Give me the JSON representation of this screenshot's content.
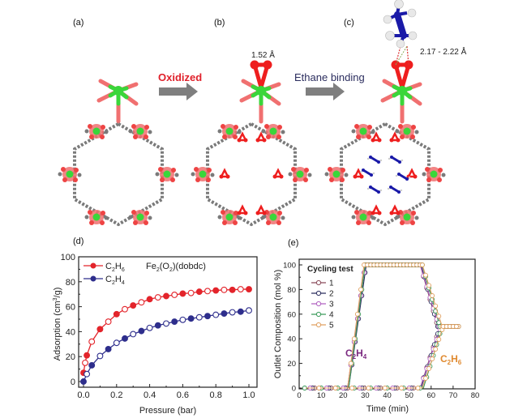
{
  "colors": {
    "oxidized_red": "#e0202a",
    "arrow_gray": "#7f7f7f",
    "ethane_navy": "#2b2d5e",
    "fe_green": "#3ad63a",
    "o_red": "#ee1e1e",
    "bond_pink": "#f07070",
    "c_gray": "#7a7a7a",
    "ethane_blue": "#1a1aa8",
    "c2h6_red": "#e3242b",
    "c2h4_navy": "#2e2e8c"
  },
  "scheme": {
    "panel_a": "(a)",
    "panel_b": "(b)",
    "panel_c": "(c)",
    "arrow1_label": "Oxidized",
    "arrow2_label": "Ethane binding",
    "bond_length_b": "1.52 Å",
    "bond_length_c": "2.17 - 2.22 Å"
  },
  "chart_data": [
    {
      "panel": "(d)",
      "type": "line",
      "title": "Fe2(O2)(dobdc)",
      "title_parts": {
        "base": "Fe",
        "sub1": "2",
        "mid": "(O",
        "sub2": "2",
        "end": ")(dobdc)"
      },
      "xlabel": "Pressure (bar)",
      "ylabel": "Adsorption (cm3/g)",
      "ylabel_parts": {
        "pre": "Adsorption (cm",
        "sup": "3",
        "post": "/g)"
      },
      "xlim": [
        0,
        1.0
      ],
      "ylim": [
        0,
        100
      ],
      "xticks": [
        "0.0",
        "0.2",
        "0.4",
        "0.6",
        "0.8",
        "1.0"
      ],
      "yticks": [
        "0",
        "20",
        "40",
        "60",
        "80",
        "100"
      ],
      "legend_position": "top-left",
      "series": [
        {
          "name": "C2H6",
          "label_parts": {
            "a": "C",
            "s1": "2",
            "b": "H",
            "s2": "6"
          },
          "color": "#e3242b",
          "x": [
            0.0,
            0.01,
            0.02,
            0.05,
            0.1,
            0.15,
            0.2,
            0.25,
            0.3,
            0.35,
            0.4,
            0.45,
            0.5,
            0.55,
            0.6,
            0.65,
            0.7,
            0.75,
            0.8,
            0.85,
            0.9,
            0.95,
            1.0
          ],
          "y": [
            7,
            15,
            21,
            32,
            42,
            48,
            54,
            58,
            61,
            63.5,
            66,
            67.5,
            68.5,
            69.5,
            70.5,
            71,
            72,
            72.5,
            73,
            73.5,
            73.5,
            74,
            74
          ]
        },
        {
          "name": "C2H4",
          "label_parts": {
            "a": "C",
            "s1": "2",
            "b": "H",
            "s2": "4"
          },
          "color": "#2e2e8c",
          "x": [
            0.0,
            0.02,
            0.05,
            0.1,
            0.15,
            0.2,
            0.25,
            0.3,
            0.35,
            0.4,
            0.45,
            0.5,
            0.55,
            0.6,
            0.65,
            0.7,
            0.75,
            0.8,
            0.85,
            0.9,
            0.95,
            1.0
          ],
          "y": [
            0,
            6,
            13,
            20.5,
            26,
            31,
            34.5,
            38,
            40.5,
            43,
            45,
            46.5,
            48,
            49.5,
            50.5,
            51.5,
            52.5,
            53.5,
            54.5,
            55.5,
            56,
            57
          ]
        }
      ]
    },
    {
      "panel": "(e)",
      "type": "line",
      "xlabel": "Time (min)",
      "ylabel": "Outlet Composition (mol %)",
      "xlim": [
        0,
        80
      ],
      "ylim": [
        0,
        100
      ],
      "xticks": [
        "0",
        "10",
        "20",
        "30",
        "40",
        "50",
        "60",
        "70",
        "80"
      ],
      "yticks": [
        "0",
        "20",
        "40",
        "60",
        "80",
        "100"
      ],
      "legend_title": "Cycling test",
      "legend_position": "top-left",
      "annotations": [
        {
          "text": "C2H4",
          "parts": {
            "a": "C",
            "s1": "2",
            "b": "H",
            "s2": "4"
          },
          "color": "#7b2a80"
        },
        {
          "text": "C2H6",
          "parts": {
            "a": "C",
            "s1": "2",
            "b": "H",
            "s2": "6"
          },
          "color": "#e08a30"
        }
      ],
      "series": [
        {
          "name": "1",
          "color": "#8a4a5a",
          "c2h4_rise": [
            22,
            30
          ],
          "c2h4_fall": [
            55,
            63
          ],
          "c2h6_rise": [
            55,
            64
          ]
        },
        {
          "name": "2",
          "color": "#2b2d5e",
          "c2h4_rise": [
            22.5,
            30.5
          ],
          "c2h4_fall": [
            55.5,
            63
          ],
          "c2h6_rise": [
            55.5,
            64
          ]
        },
        {
          "name": "3",
          "color": "#b060c0",
          "c2h4_rise": [
            22,
            30
          ],
          "c2h4_fall": [
            55,
            63.5
          ],
          "c2h6_rise": [
            55,
            64.5
          ]
        },
        {
          "name": "4",
          "color": "#3a9a5a",
          "c2h4_rise": [
            22.5,
            30
          ],
          "c2h4_fall": [
            56,
            64
          ],
          "c2h6_rise": [
            56.5,
            65
          ]
        },
        {
          "name": "5",
          "color": "#e0a060",
          "c2h4_rise": [
            22,
            29.5
          ],
          "c2h4_fall": [
            56,
            65
          ],
          "c2h6_rise": [
            56,
            65.5
          ]
        }
      ],
      "plateau_high": 100,
      "plateau_mid": 50,
      "end_time": 73
    }
  ]
}
